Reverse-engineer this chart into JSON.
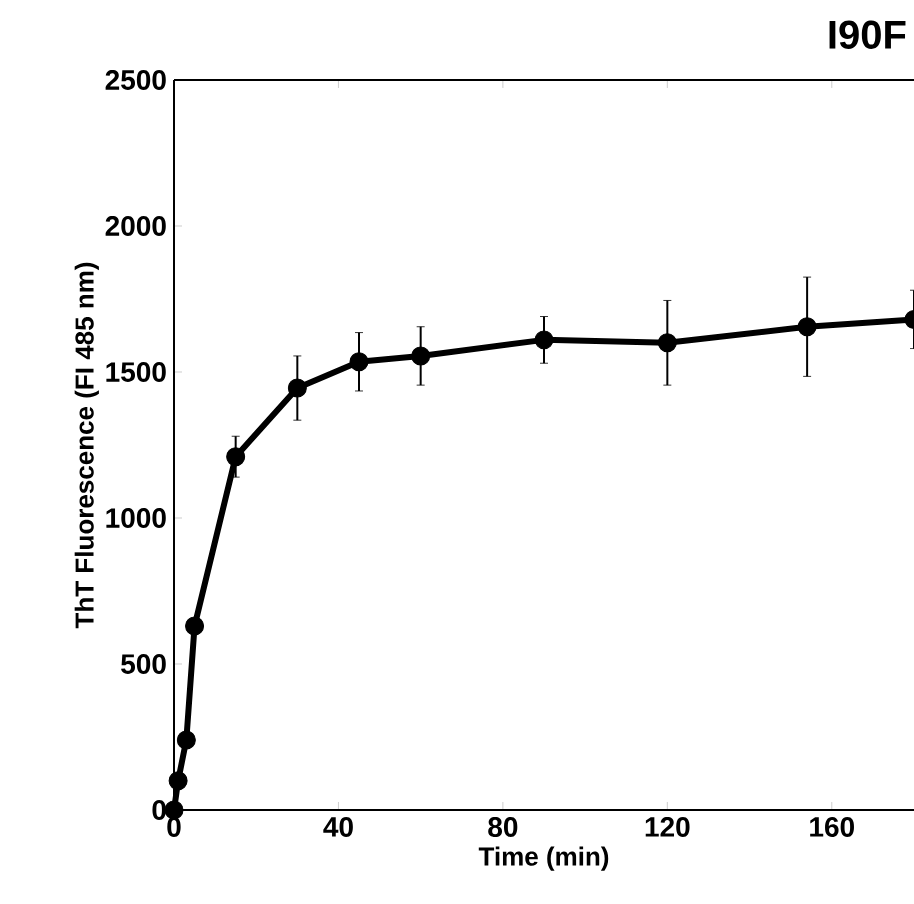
{
  "chart_data": {
    "type": "line",
    "title": "I90F",
    "xlabel": "Time (min)",
    "ylabel": "ThT Fluorescence (FI 485 nm)",
    "x": [
      0,
      1,
      3,
      5,
      15,
      30,
      45,
      60,
      90,
      120,
      154,
      180
    ],
    "series": [
      {
        "color": "#000000",
        "values": [
          0,
          100,
          240,
          630,
          1210,
          1445,
          1535,
          1555,
          1610,
          1600,
          1655,
          1680
        ],
        "errors": [
          null,
          null,
          null,
          null,
          70,
          110,
          100,
          100,
          80,
          145,
          170,
          100
        ]
      }
    ],
    "xlim": [
      0,
      180
    ],
    "xticks": [
      0,
      40,
      80,
      120,
      160
    ],
    "ylim": [
      0,
      2500
    ],
    "yticks": [
      0,
      500,
      1000,
      1500,
      2000,
      2500
    ],
    "marker": "circle",
    "line_style": "solid"
  }
}
